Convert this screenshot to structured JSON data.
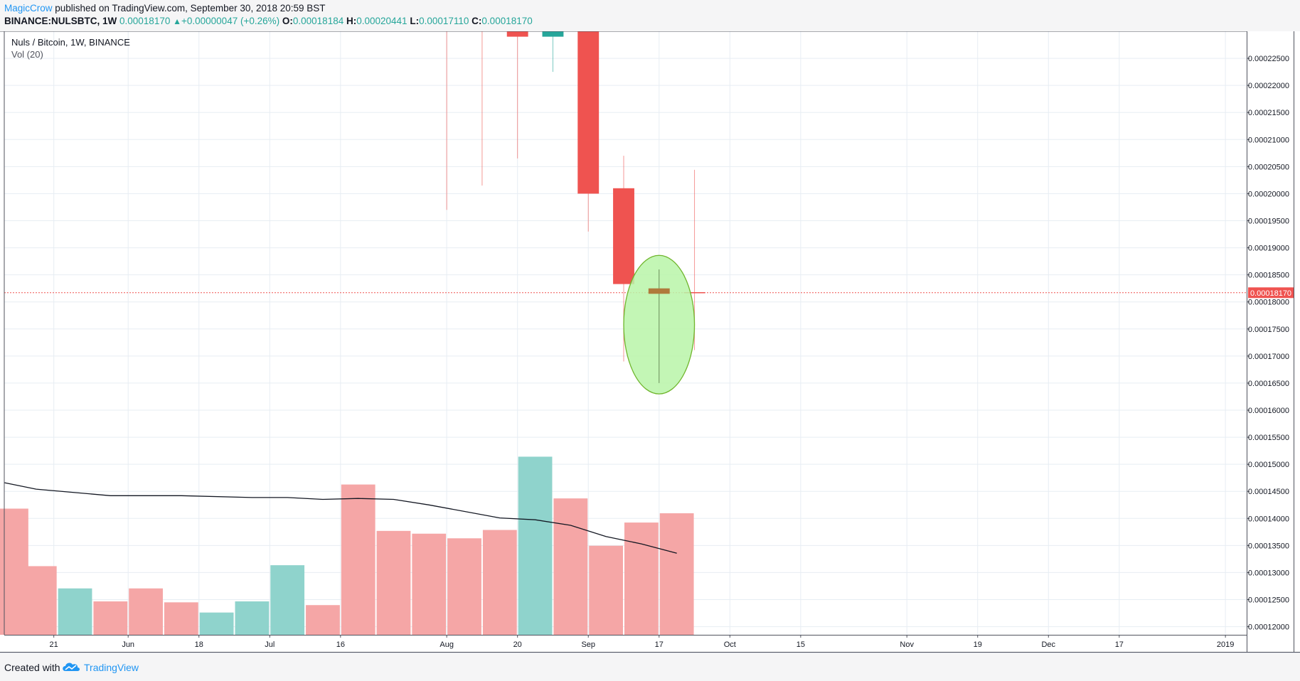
{
  "header": {
    "author": "MagicCrow",
    "published_text": " published on TradingView.com, September 30, 2018 20:59 BST",
    "symbol": "BINANCE:NULSBTC, 1W",
    "last": "0.00018170",
    "change": "+0.00000047 (+0.26%)",
    "o_label": "O:",
    "o_value": "0.00018184",
    "h_label": "H:",
    "h_value": "0.00020441",
    "l_label": "L:",
    "l_value": "0.00017110",
    "c_label": "C:",
    "c_value": "0.00018170"
  },
  "legend": {
    "title": "Nuls / Bitcoin, 1W, BINANCE",
    "volume": "Vol (20)"
  },
  "footer": {
    "created_with": "Created with",
    "brand": "TradingView"
  },
  "colors": {
    "up": "#26a69a",
    "down": "#ef5350",
    "vol_up": "#8fd3cc",
    "vol_down": "#f5a6a6",
    "grid": "#e7edf3",
    "price_line": "#ef5350",
    "ellipse_fill": "#b9f5a8",
    "ellipse_stroke": "#6fb52c",
    "doji": "#b07a3c",
    "link": "#2196f3"
  },
  "chart_data": {
    "type": "candlestick",
    "title": "Nuls / Bitcoin, 1W, BINANCE",
    "price_axis_ticks": [
      "0.00012000",
      "0.00012500",
      "0.00013000",
      "0.00013500",
      "0.00014000",
      "0.00014500",
      "0.00015000",
      "0.00015500",
      "0.00016000",
      "0.00016500",
      "0.00017000",
      "0.00017500",
      "0.00018000",
      "0.00018500",
      "0.00019000",
      "0.00019500",
      "0.00020000",
      "0.00020500",
      "0.00021000",
      "0.00021500",
      "0.00022000",
      "0.00022500"
    ],
    "price_range": [
      0.0001185,
      0.00023
    ],
    "last_price_label": "0.00018170",
    "last_price": 0.0001817,
    "x_ticks": [
      {
        "week": 0.9,
        "label": "21"
      },
      {
        "week": 3,
        "label": "Jun"
      },
      {
        "week": 5,
        "label": "18"
      },
      {
        "week": 7,
        "label": "Jul"
      },
      {
        "week": 9,
        "label": "16"
      },
      {
        "week": 12,
        "label": "Aug"
      },
      {
        "week": 14,
        "label": "20"
      },
      {
        "week": 16,
        "label": "Sep"
      },
      {
        "week": 18,
        "label": "17"
      },
      {
        "week": 20,
        "label": "Oct"
      },
      {
        "week": 22,
        "label": "15"
      },
      {
        "week": 25,
        "label": "Nov"
      },
      {
        "week": 27,
        "label": "19"
      },
      {
        "week": 29,
        "label": "Dec"
      },
      {
        "week": 31,
        "label": "17"
      },
      {
        "week": 34,
        "label": "2019"
      }
    ],
    "weeks_range": [
      -0.5,
      34.6
    ],
    "candles": [
      {
        "week": 12,
        "open": null,
        "high": null,
        "low": 0.000197,
        "close": null,
        "dir": "down"
      },
      {
        "week": 13,
        "open": null,
        "high": null,
        "low": 0.0002015,
        "close": null,
        "dir": "down"
      },
      {
        "week": 14,
        "open": 0.0002345,
        "high": 0.00024,
        "low": 0.0002065,
        "close": 0.000229,
        "dir": "down"
      },
      {
        "week": 15,
        "open": 0.000229,
        "high": 0.000235,
        "low": 0.0002225,
        "close": 0.0002345,
        "dir": "up"
      },
      {
        "week": 16,
        "open": 0.00023,
        "high": 0.00023,
        "low": 0.000193,
        "close": 0.0002,
        "dir": "down"
      },
      {
        "week": 17,
        "open": 0.000201,
        "high": 0.000207,
        "low": 0.000169,
        "close": 0.0001833,
        "dir": "down"
      },
      {
        "week": 18,
        "open": 0.0001825,
        "high": 0.000186,
        "low": 0.000165,
        "close": 0.0001815,
        "dir": "down"
      },
      {
        "week": 19,
        "open": 0.0001818,
        "high": 0.0002044,
        "low": 0.0001711,
        "close": 0.0001817,
        "dir": "down"
      }
    ],
    "volume_range": [
      0,
      100
    ],
    "volume": [
      {
        "week": -0.3,
        "value": 68,
        "dir": "down"
      },
      {
        "week": 0.5,
        "value": 37,
        "dir": "down"
      },
      {
        "week": 1.5,
        "value": 25,
        "dir": "up"
      },
      {
        "week": 2.5,
        "value": 18,
        "dir": "down"
      },
      {
        "week": 3.5,
        "value": 25,
        "dir": "down"
      },
      {
        "week": 4.5,
        "value": 17.5,
        "dir": "down"
      },
      {
        "week": 5.5,
        "value": 12,
        "dir": "up"
      },
      {
        "week": 6.5,
        "value": 18,
        "dir": "up"
      },
      {
        "week": 7.5,
        "value": 37.5,
        "dir": "up"
      },
      {
        "week": 8.5,
        "value": 16,
        "dir": "down"
      },
      {
        "week": 9.5,
        "value": 81,
        "dir": "down"
      },
      {
        "week": 10.5,
        "value": 56,
        "dir": "down"
      },
      {
        "week": 11.5,
        "value": 54.5,
        "dir": "down"
      },
      {
        "week": 12.5,
        "value": 52,
        "dir": "down"
      },
      {
        "week": 13.5,
        "value": 56.5,
        "dir": "down"
      },
      {
        "week": 14.5,
        "value": 96,
        "dir": "up"
      },
      {
        "week": 15.5,
        "value": 73.5,
        "dir": "down"
      },
      {
        "week": 16.5,
        "value": 48,
        "dir": "down"
      },
      {
        "week": 17.5,
        "value": 60.5,
        "dir": "down"
      },
      {
        "week": 18.5,
        "value": 65.5,
        "dir": "down"
      }
    ],
    "volume_ma": [
      {
        "week": -0.5,
        "value": 82
      },
      {
        "week": 0.4,
        "value": 78.5
      },
      {
        "week": 2.5,
        "value": 75
      },
      {
        "week": 4.5,
        "value": 75
      },
      {
        "week": 6.5,
        "value": 74
      },
      {
        "week": 7.5,
        "value": 74
      },
      {
        "week": 8.5,
        "value": 73
      },
      {
        "week": 9.5,
        "value": 73.5
      },
      {
        "week": 10.5,
        "value": 73
      },
      {
        "week": 11.5,
        "value": 70
      },
      {
        "week": 13.5,
        "value": 63
      },
      {
        "week": 14.5,
        "value": 62
      },
      {
        "week": 15.5,
        "value": 59
      },
      {
        "week": 16.5,
        "value": 53
      },
      {
        "week": 17.5,
        "value": 49
      },
      {
        "week": 18.5,
        "value": 44
      }
    ],
    "highlight_ellipse": {
      "week": 18,
      "price": 0.0001758,
      "rx_weeks": 1.0,
      "ry_price": 1.28e-05
    }
  }
}
